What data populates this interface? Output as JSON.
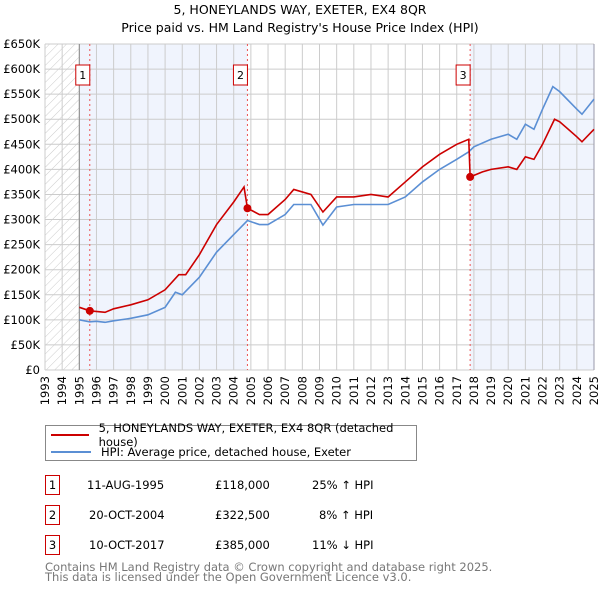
{
  "chart_data": {
    "type": "line",
    "title": "5, HONEYLANDS WAY, EXETER, EX4 8QR",
    "subtitle": "Price paid vs. HM Land Registry's House Price Index (HPI)",
    "xlim": [
      1993,
      2025
    ],
    "ylim": [
      0,
      650000
    ],
    "x_ticks": [
      "1993",
      "1994",
      "1995",
      "1996",
      "1997",
      "1998",
      "1999",
      "2000",
      "2001",
      "2002",
      "2003",
      "2004",
      "2005",
      "2006",
      "2007",
      "2008",
      "2009",
      "2010",
      "2011",
      "2012",
      "2013",
      "2014",
      "2015",
      "2016",
      "2017",
      "2018",
      "2019",
      "2020",
      "2021",
      "2022",
      "2023",
      "2024",
      "2025"
    ],
    "y_ticks": [
      {
        "v": 0,
        "l": "£0"
      },
      {
        "v": 50000,
        "l": "£50K"
      },
      {
        "v": 100000,
        "l": "£100K"
      },
      {
        "v": 150000,
        "l": "£150K"
      },
      {
        "v": 200000,
        "l": "£200K"
      },
      {
        "v": 250000,
        "l": "£250K"
      },
      {
        "v": 300000,
        "l": "£300K"
      },
      {
        "v": 350000,
        "l": "£350K"
      },
      {
        "v": 400000,
        "l": "£400K"
      },
      {
        "v": 450000,
        "l": "£450K"
      },
      {
        "v": 500000,
        "l": "£500K"
      },
      {
        "v": 550000,
        "l": "£550K"
      },
      {
        "v": 600000,
        "l": "£600K"
      },
      {
        "v": 650000,
        "l": "£650K"
      }
    ],
    "grid": true,
    "series": [
      {
        "name": "5, HONEYLANDS WAY, EXETER, EX4 8QR (detached house)",
        "color": "#cc0000",
        "x": [
          1995,
          1995.61,
          1996.5,
          1997,
          1998,
          1999,
          2000,
          2000.8,
          2001.2,
          2002,
          2003,
          2004,
          2004.6,
          2004.8,
          2005.5,
          2006,
          2007,
          2007.5,
          2008.5,
          2009.2,
          2010,
          2011,
          2012,
          2013,
          2014,
          2015,
          2016,
          2017,
          2017.7,
          2017.78,
          2018.5,
          2019,
          2020,
          2020.5,
          2021,
          2021.5,
          2022,
          2022.7,
          2023,
          2024,
          2024.3,
          2025
        ],
        "y": [
          125000,
          118000,
          115000,
          122000,
          130000,
          140000,
          160000,
          190000,
          190000,
          230000,
          290000,
          335000,
          365000,
          322500,
          310000,
          310000,
          340000,
          360000,
          350000,
          315000,
          345000,
          345000,
          350000,
          345000,
          375000,
          405000,
          430000,
          450000,
          460000,
          385000,
          395000,
          400000,
          405000,
          400000,
          425000,
          420000,
          450000,
          500000,
          495000,
          465000,
          455000,
          480000
        ]
      },
      {
        "name": "HPI: Average price, detached house, Exeter",
        "color": "#5b8fd4",
        "x": [
          1995,
          1995.6,
          1996,
          1996.5,
          1997,
          1998,
          1999,
          2000,
          2000.6,
          2001,
          2002,
          2003,
          2004,
          2004.8,
          2005.5,
          2006,
          2007,
          2007.5,
          2008.5,
          2009.2,
          2010,
          2011,
          2012,
          2013,
          2014,
          2015,
          2016,
          2017,
          2017.7,
          2018,
          2019,
          2020,
          2020.5,
          2021,
          2021.5,
          2022,
          2022.6,
          2023,
          2024,
          2024.3,
          2025
        ],
        "y": [
          100000,
          96000,
          97000,
          95000,
          98000,
          103000,
          110000,
          125000,
          155000,
          150000,
          185000,
          235000,
          270000,
          298000,
          290000,
          290000,
          310000,
          330000,
          330000,
          289000,
          325000,
          330000,
          330000,
          330000,
          345000,
          375000,
          400000,
          420000,
          435000,
          445000,
          460000,
          470000,
          460000,
          490000,
          480000,
          520000,
          565000,
          555000,
          520000,
          510000,
          540000
        ]
      }
    ],
    "sales": [
      {
        "label": "1",
        "x": 1995.61,
        "price": 118000,
        "date": "11-AUG-1995",
        "price_text": "£118,000",
        "hpi": "25% ↑ HPI"
      },
      {
        "label": "2",
        "x": 2004.8,
        "price": 322500,
        "date": "20-OCT-2004",
        "price_text": "£322,500",
        "hpi": "8% ↑ HPI"
      },
      {
        "label": "3",
        "x": 2017.78,
        "price": 385000,
        "date": "10-OCT-2017",
        "price_text": "£385,000",
        "hpi": "11% ↓ HPI"
      }
    ],
    "hatch_range": [
      1993,
      1995
    ],
    "shaded_ranges": [
      [
        1995,
        2004.8
      ],
      [
        2017.78,
        2025
      ]
    ],
    "legend": "bottom"
  },
  "footer": {
    "line1": "Contains HM Land Registry data © Crown copyright and database right 2025.",
    "line2": "This data is licensed under the Open Government Licence v3.0."
  }
}
